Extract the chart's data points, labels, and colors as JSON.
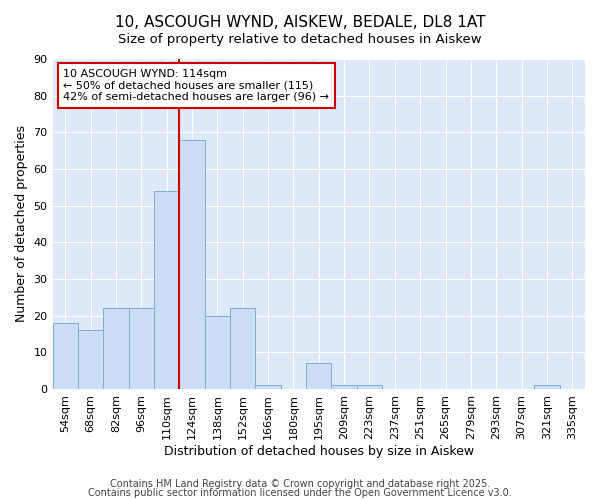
{
  "title1": "10, ASCOUGH WYND, AISKEW, BEDALE, DL8 1AT",
  "title2": "Size of property relative to detached houses in Aiskew",
  "xlabel": "Distribution of detached houses by size in Aiskew",
  "ylabel": "Number of detached properties",
  "categories": [
    "54sqm",
    "68sqm",
    "82sqm",
    "96sqm",
    "110sqm",
    "124sqm",
    "138sqm",
    "152sqm",
    "166sqm",
    "180sqm",
    "195sqm",
    "209sqm",
    "223sqm",
    "237sqm",
    "251sqm",
    "265sqm",
    "279sqm",
    "293sqm",
    "307sqm",
    "321sqm",
    "335sqm"
  ],
  "values": [
    18,
    16,
    22,
    22,
    54,
    68,
    20,
    22,
    1,
    0,
    7,
    1,
    1,
    0,
    0,
    0,
    0,
    0,
    0,
    1,
    0
  ],
  "bar_color": "#ccddf5",
  "bar_edge_color": "#7aaed6",
  "vline_x_index": 5,
  "vline_color": "#cc0000",
  "annotation_text": "10 ASCOUGH WYND: 114sqm\n← 50% of detached houses are smaller (115)\n42% of semi-detached houses are larger (96) →",
  "annotation_box_color": "white",
  "annotation_box_edge": "#cc0000",
  "ylim": [
    0,
    90
  ],
  "yticks": [
    0,
    10,
    20,
    30,
    40,
    50,
    60,
    70,
    80,
    90
  ],
  "plot_bg_color": "#dde8f8",
  "fig_bg_color": "#ffffff",
  "grid_color": "#ffffff",
  "footer1": "Contains HM Land Registry data © Crown copyright and database right 2025.",
  "footer2": "Contains public sector information licensed under the Open Government Licence v3.0.",
  "title_fontsize": 11,
  "subtitle_fontsize": 9.5,
  "axis_label_fontsize": 9,
  "tick_fontsize": 8,
  "annotation_fontsize": 8,
  "footer_fontsize": 7,
  "ylabel_fontsize": 9
}
